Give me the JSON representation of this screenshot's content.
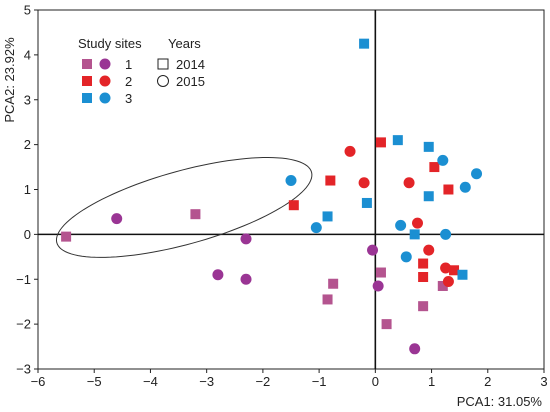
{
  "chart_data": {
    "type": "scatter",
    "title": "",
    "xlabel": "PCA1: 31.05%",
    "ylabel": "PCA2: 23.92%",
    "xlim": [
      -6,
      3
    ],
    "ylim": [
      -3,
      5
    ],
    "xticks": [
      "−6",
      "−5",
      "−4",
      "−3",
      "−2",
      "−1",
      "0",
      "1",
      "2",
      "3"
    ],
    "yticks": [
      "−3",
      "−2",
      "−1",
      "0",
      "1",
      "2",
      "3",
      "4",
      "5"
    ],
    "grid": false,
    "zero_lines": true,
    "legend": {
      "placement": "top-left",
      "sites_title": "Study sites",
      "years_title": "Years",
      "sites": [
        "1",
        "2",
        "3"
      ],
      "years": [
        "2014",
        "2015"
      ]
    },
    "colors": {
      "1": "#a7498d",
      "2": "#e32428",
      "3": "#1b8fd2",
      "site1_2014": "#b4548f",
      "site1_2015": "#9a3594"
    },
    "marker_by_year": {
      "2014": "square",
      "2015": "circle"
    },
    "ellipse": {
      "center": [
        -3.4,
        0.6
      ],
      "semi_axes": [
        2.4,
        0.8
      ],
      "angle_deg": 20
    },
    "series": [
      {
        "site": "1",
        "year": "2014",
        "points": [
          [
            -5.5,
            -0.05
          ],
          [
            -3.2,
            0.45
          ],
          [
            -0.85,
            -1.45
          ],
          [
            -0.75,
            -1.1
          ],
          [
            0.1,
            -0.85
          ],
          [
            0.2,
            -2.0
          ],
          [
            0.85,
            -1.6
          ],
          [
            1.2,
            -1.15
          ]
        ]
      },
      {
        "site": "1",
        "year": "2015",
        "points": [
          [
            -4.6,
            0.35
          ],
          [
            -2.3,
            -0.1
          ],
          [
            -2.8,
            -0.9
          ],
          [
            -2.3,
            -1.0
          ],
          [
            -0.05,
            -0.35
          ],
          [
            0.05,
            -1.15
          ],
          [
            0.7,
            -2.55
          ]
        ]
      },
      {
        "site": "2",
        "year": "2014",
        "points": [
          [
            0.1,
            2.05
          ],
          [
            -0.8,
            1.2
          ],
          [
            -1.45,
            0.65
          ],
          [
            1.05,
            1.5
          ],
          [
            1.3,
            1.0
          ],
          [
            0.85,
            -0.65
          ],
          [
            0.85,
            -0.95
          ],
          [
            1.4,
            -0.8
          ]
        ]
      },
      {
        "site": "2",
        "year": "2015",
        "points": [
          [
            -0.45,
            1.85
          ],
          [
            -0.2,
            1.15
          ],
          [
            0.6,
            1.15
          ],
          [
            0.75,
            0.25
          ],
          [
            0.95,
            -0.35
          ],
          [
            1.25,
            -0.75
          ],
          [
            1.3,
            -1.05
          ]
        ]
      },
      {
        "site": "3",
        "year": "2014",
        "points": [
          [
            -0.2,
            4.25
          ],
          [
            0.4,
            2.1
          ],
          [
            0.95,
            1.95
          ],
          [
            -0.85,
            0.4
          ],
          [
            -0.15,
            0.7
          ],
          [
            0.95,
            0.85
          ],
          [
            0.7,
            0.0
          ],
          [
            1.55,
            -0.9
          ]
        ]
      },
      {
        "site": "3",
        "year": "2015",
        "points": [
          [
            -1.5,
            1.2
          ],
          [
            -1.05,
            0.15
          ],
          [
            1.2,
            1.65
          ],
          [
            1.8,
            1.35
          ],
          [
            1.6,
            1.05
          ],
          [
            0.45,
            0.2
          ],
          [
            0.55,
            -0.5
          ],
          [
            1.25,
            0.0
          ]
        ]
      }
    ]
  }
}
